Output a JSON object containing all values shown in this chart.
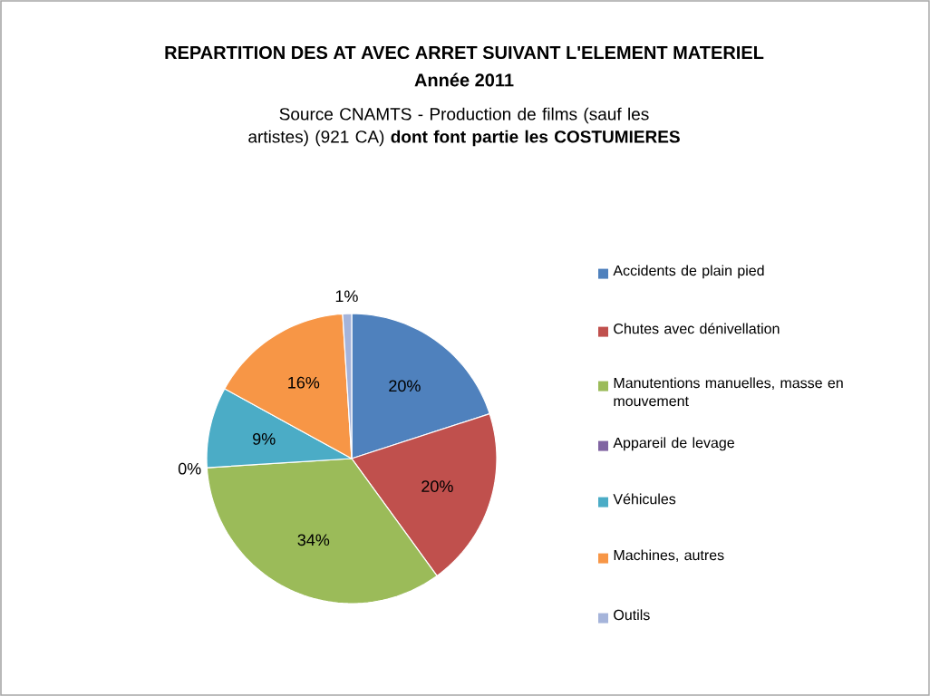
{
  "chart_data": {
    "type": "pie",
    "title": "REPARTITION DES AT AVEC ARRET SUIVANT L'ELEMENT MATERIEL",
    "subtitle": "Année 2011",
    "annotations": [
      "Source CNAMTS - Production de films (sauf les artistes) (921 CA) **dont font partie les COSTUMIERES**"
    ],
    "categories": [
      "Accidents de plain pied",
      "Chutes avec dénivellation",
      "Manutentions manuelles, masse en mouvement",
      "Appareil de levage",
      "Véhicules",
      "Machines, autres",
      "Outils"
    ],
    "values": [
      20,
      20,
      34,
      0,
      9,
      16,
      1
    ],
    "value_labels": [
      "20%",
      "20%",
      "34%",
      "0%",
      "9%",
      "16%",
      "1%"
    ],
    "colors": [
      "#4f81bd",
      "#c0504d",
      "#9bbb59",
      "#8064a2",
      "#4bacc6",
      "#f79646",
      "#a5b4da"
    ],
    "legend": "right"
  }
}
